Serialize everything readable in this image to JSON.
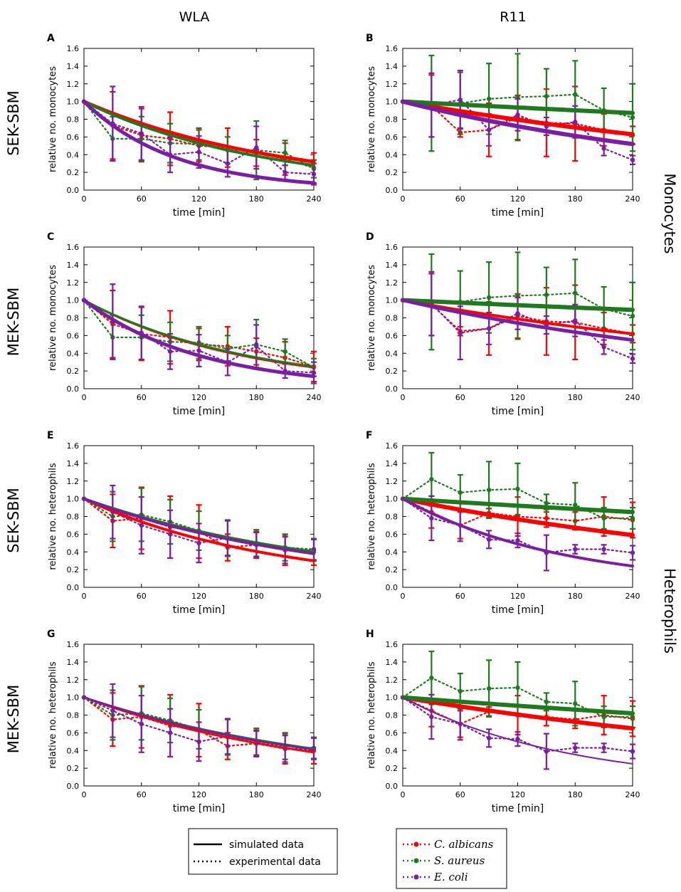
{
  "columns": [
    "WLA",
    "R11"
  ],
  "row_labels": [
    "SEK-SBM",
    "MEK-SBM",
    "SEK-SBM",
    "MEK-SBM"
  ],
  "group_labels": [
    "Monocytes",
    "Heterophils"
  ],
  "colors": {
    "C. albicans": "#ff0000",
    "S. aureus": "#1f7a1f",
    "E. coli": "#7b1fa2"
  },
  "legend_lines": {
    "simulated": "simulated data",
    "experimental": "experimental data"
  },
  "legend_species": [
    "C. albicans",
    "S. aureus",
    "E. coli"
  ],
  "chart_data": [
    {
      "panel": "A",
      "type": "line",
      "xlabel": "time [min]",
      "ylabel": "relative no. monocytes",
      "xlim": [
        0,
        240
      ],
      "ylim": [
        0,
        1.6
      ],
      "xticks": [
        0,
        60,
        120,
        180,
        240
      ],
      "yticks": [
        "0.0",
        "0.2",
        "0.4",
        "0.6",
        "0.8",
        "1.0",
        "1.2",
        "1.4",
        "1.6"
      ],
      "x": [
        0,
        30,
        60,
        90,
        120,
        150,
        180,
        210,
        240
      ],
      "series": [
        {
          "name": "C. albicans",
          "simulated": [
            1.0,
            0.32
          ],
          "lw": 5,
          "experimental": [
            1.0,
            0.73,
            0.62,
            0.58,
            0.5,
            0.48,
            0.42,
            0.35,
            0.25
          ],
          "err": [
            0,
            0.38,
            0.3,
            0.3,
            0.18,
            0.22,
            0.15,
            0.18,
            0.17
          ]
        },
        {
          "name": "S. aureus",
          "simulated": [
            1.0,
            0.28
          ],
          "lw": 4,
          "experimental": [
            1.0,
            0.58,
            0.58,
            0.53,
            0.52,
            0.45,
            0.45,
            0.42,
            0.24
          ],
          "err": [
            0,
            0.25,
            0.25,
            0.22,
            0.18,
            0.15,
            0.33,
            0.14,
            0.1
          ]
        },
        {
          "name": "E. coli",
          "simulated": [
            1.0,
            0.08
          ],
          "lw": 5,
          "experimental": [
            1.0,
            0.75,
            0.64,
            0.4,
            0.43,
            0.3,
            0.48,
            0.2,
            0.18
          ],
          "err": [
            0,
            0.42,
            0.3,
            0.2,
            0.18,
            0.15,
            0.24,
            0.08,
            0.12
          ]
        }
      ]
    },
    {
      "panel": "B",
      "type": "line",
      "xlabel": "time [min]",
      "ylabel": "relative no. monocytes",
      "xlim": [
        0,
        240
      ],
      "ylim": [
        0,
        1.6
      ],
      "xticks": [
        0,
        60,
        120,
        180,
        240
      ],
      "yticks": [
        "0.0",
        "0.2",
        "0.4",
        "0.6",
        "0.8",
        "1.0",
        "1.2",
        "1.4",
        "1.6"
      ],
      "x": [
        0,
        30,
        60,
        90,
        120,
        150,
        180,
        210,
        240
      ],
      "series": [
        {
          "name": "C. albicans",
          "simulated": [
            1.0,
            0.63
          ],
          "lw": 6,
          "experimental": [
            1.0,
            0.95,
            0.65,
            0.68,
            0.82,
            0.76,
            0.75,
            0.68,
            0.62
          ],
          "err": [
            0,
            0.35,
            0.05,
            0.3,
            0.25,
            0.38,
            0.42,
            0.18,
            0.1
          ]
        },
        {
          "name": "S. aureus",
          "simulated": [
            1.0,
            0.87
          ],
          "lw": 6,
          "experimental": [
            1.0,
            0.98,
            0.98,
            1.03,
            1.05,
            1.06,
            1.08,
            0.9,
            0.82
          ],
          "err": [
            0,
            0.54,
            0.35,
            0.4,
            0.49,
            0.31,
            0.38,
            0.25,
            0.38
          ]
        },
        {
          "name": "E. coli",
          "simulated": [
            1.0,
            0.52
          ],
          "lw": 6,
          "experimental": [
            1.0,
            0.96,
            1.02,
            0.68,
            0.85,
            0.72,
            0.77,
            0.47,
            0.34
          ],
          "err": [
            0,
            0.36,
            0.33,
            0.18,
            0.18,
            0.1,
            0.18,
            0.08,
            0.05
          ]
        }
      ]
    },
    {
      "panel": "C",
      "type": "line",
      "xlabel": "time [min]",
      "ylabel": "relative no. monocytes",
      "xlim": [
        0,
        240
      ],
      "ylim": [
        0,
        1.6
      ],
      "xticks": [
        0,
        60,
        120,
        180,
        240
      ],
      "yticks": [
        "0.0",
        "0.2",
        "0.4",
        "0.6",
        "0.8",
        "1.0",
        "1.2",
        "1.4",
        "1.6"
      ],
      "x": [
        0,
        30,
        60,
        90,
        120,
        150,
        180,
        210,
        240
      ],
      "series": [
        {
          "name": "C. albicans",
          "simulated": [
            1.0,
            0.24
          ],
          "lw": 3,
          "experimental": [
            1.0,
            0.73,
            0.62,
            0.58,
            0.5,
            0.48,
            0.42,
            0.35,
            0.25
          ],
          "err": [
            0,
            0.38,
            0.3,
            0.3,
            0.18,
            0.22,
            0.15,
            0.18,
            0.17
          ]
        },
        {
          "name": "S. aureus",
          "simulated": [
            1.0,
            0.25
          ],
          "lw": 3,
          "experimental": [
            1.0,
            0.58,
            0.58,
            0.53,
            0.52,
            0.45,
            0.5,
            0.42,
            0.24
          ],
          "err": [
            0,
            0.25,
            0.25,
            0.22,
            0.18,
            0.15,
            0.28,
            0.14,
            0.1
          ]
        },
        {
          "name": "E. coli",
          "simulated": [
            1.0,
            0.14
          ],
          "lw": 5,
          "experimental": [
            1.0,
            0.76,
            0.63,
            0.42,
            0.43,
            0.3,
            0.48,
            0.2,
            0.18
          ],
          "err": [
            0,
            0.42,
            0.3,
            0.2,
            0.18,
            0.15,
            0.24,
            0.08,
            0.12
          ]
        }
      ]
    },
    {
      "panel": "D",
      "type": "line",
      "xlabel": "time [min]",
      "ylabel": "relative no. monocytes",
      "xlim": [
        0,
        240
      ],
      "ylim": [
        0,
        1.6
      ],
      "xticks": [
        0,
        60,
        120,
        180,
        240
      ],
      "yticks": [
        "0.0",
        "0.2",
        "0.4",
        "0.6",
        "0.8",
        "1.0",
        "1.2",
        "1.4",
        "1.6"
      ],
      "x": [
        0,
        30,
        60,
        90,
        120,
        150,
        180,
        210,
        240
      ],
      "series": [
        {
          "name": "C. albicans",
          "simulated": [
            1.0,
            0.62
          ],
          "lw": 4,
          "experimental": [
            1.0,
            0.95,
            0.65,
            0.68,
            0.82,
            0.76,
            0.75,
            0.68,
            0.62
          ],
          "err": [
            0,
            0.35,
            0.05,
            0.3,
            0.25,
            0.38,
            0.42,
            0.18,
            0.1
          ]
        },
        {
          "name": "S. aureus",
          "simulated": [
            1.0,
            0.89
          ],
          "lw": 6,
          "experimental": [
            1.0,
            0.98,
            0.98,
            1.03,
            1.05,
            1.06,
            1.08,
            0.9,
            0.82
          ],
          "err": [
            0,
            0.54,
            0.35,
            0.4,
            0.49,
            0.31,
            0.38,
            0.25,
            0.38
          ]
        },
        {
          "name": "E. coli",
          "simulated": [
            1.0,
            0.55
          ],
          "lw": 5,
          "experimental": [
            1.0,
            0.96,
            0.63,
            0.68,
            0.85,
            0.72,
            0.77,
            0.47,
            0.34
          ],
          "err": [
            0,
            0.36,
            0.3,
            0.18,
            0.18,
            0.1,
            0.18,
            0.08,
            0.05
          ]
        }
      ]
    },
    {
      "panel": "E",
      "type": "line",
      "xlabel": "time [min]",
      "ylabel": "relative no. heterophils",
      "xlim": [
        0,
        240
      ],
      "ylim": [
        0,
        1.6
      ],
      "xticks": [
        0,
        60,
        120,
        180,
        240
      ],
      "yticks": [
        "0.0",
        "0.2",
        "0.4",
        "0.6",
        "0.8",
        "1.0",
        "1.2",
        "1.4",
        "1.6"
      ],
      "x": [
        0,
        30,
        60,
        90,
        120,
        150,
        180,
        210,
        240
      ],
      "series": [
        {
          "name": "C. albicans",
          "simulated": [
            1.0,
            0.3
          ],
          "lw": 4,
          "experimental": [
            1.0,
            0.75,
            0.78,
            0.68,
            0.63,
            0.45,
            0.48,
            0.42,
            0.4
          ],
          "err": [
            0,
            0.3,
            0.35,
            0.35,
            0.3,
            0.15,
            0.15,
            0.17,
            0.15
          ]
        },
        {
          "name": "S. aureus",
          "simulated": [
            1.0,
            0.4
          ],
          "lw": 4,
          "experimental": [
            1.0,
            0.8,
            0.82,
            0.74,
            0.64,
            0.55,
            0.5,
            0.45,
            0.43
          ],
          "err": [
            0,
            0.28,
            0.3,
            0.25,
            0.22,
            0.2,
            0.15,
            0.15,
            0.12
          ]
        },
        {
          "name": "E. coli",
          "simulated": [
            1.0,
            0.38
          ],
          "lw": 4,
          "experimental": [
            1.0,
            0.85,
            0.7,
            0.6,
            0.5,
            0.56,
            0.48,
            0.42,
            0.42
          ],
          "err": [
            0,
            0.3,
            0.32,
            0.27,
            0.22,
            0.2,
            0.14,
            0.15,
            0.12
          ]
        }
      ]
    },
    {
      "panel": "F",
      "type": "line",
      "xlabel": "time [min]",
      "ylabel": "relative no. heterophils",
      "xlim": [
        0,
        240
      ],
      "ylim": [
        0,
        1.6
      ],
      "xticks": [
        0,
        60,
        120,
        180,
        240
      ],
      "yticks": [
        "0.0",
        "0.2",
        "0.4",
        "0.6",
        "0.8",
        "1.0",
        "1.2",
        "1.4",
        "1.6"
      ],
      "x": [
        0,
        30,
        60,
        90,
        120,
        150,
        180,
        210,
        240
      ],
      "series": [
        {
          "name": "C. albicans",
          "simulated": [
            1.0,
            0.59
          ],
          "lw": 6,
          "experimental": [
            1.0,
            0.85,
            0.7,
            0.84,
            0.8,
            0.78,
            0.75,
            0.8,
            0.76
          ],
          "err": [
            0,
            0.18,
            0.15,
            0.05,
            0.22,
            0.1,
            0.1,
            0.22,
            0.2
          ]
        },
        {
          "name": "S. aureus",
          "simulated": [
            1.0,
            0.85
          ],
          "lw": 6,
          "experimental": [
            1.0,
            1.22,
            1.07,
            1.1,
            1.11,
            0.95,
            0.93,
            0.78,
            0.78
          ],
          "err": [
            0,
            0.3,
            0.2,
            0.32,
            0.29,
            0.1,
            0.25,
            0.12,
            0.12
          ]
        },
        {
          "name": "E. coli",
          "simulated": [
            1.0,
            0.24
          ],
          "lw": 4,
          "experimental": [
            1.0,
            0.78,
            0.7,
            0.54,
            0.53,
            0.39,
            0.43,
            0.43,
            0.39
          ],
          "err": [
            0,
            0.25,
            0.18,
            0.1,
            0.08,
            0.2,
            0.05,
            0.05,
            0.08
          ]
        }
      ]
    },
    {
      "panel": "G",
      "type": "line",
      "xlabel": "time [min]",
      "ylabel": "relative no. heterophils",
      "xlim": [
        0,
        240
      ],
      "ylim": [
        0,
        1.6
      ],
      "xticks": [
        0,
        60,
        120,
        180,
        240
      ],
      "yticks": [
        "0.0",
        "0.2",
        "0.4",
        "0.6",
        "0.8",
        "1.0",
        "1.2",
        "1.4",
        "1.6"
      ],
      "x": [
        0,
        30,
        60,
        90,
        120,
        150,
        180,
        210,
        240
      ],
      "series": [
        {
          "name": "C. albicans",
          "simulated": [
            1.0,
            0.38
          ],
          "lw": 3,
          "experimental": [
            1.0,
            0.75,
            0.78,
            0.68,
            0.63,
            0.45,
            0.48,
            0.42,
            0.4
          ],
          "err": [
            0,
            0.3,
            0.35,
            0.35,
            0.3,
            0.15,
            0.15,
            0.17,
            0.15
          ]
        },
        {
          "name": "S. aureus",
          "simulated": [
            1.0,
            0.42
          ],
          "lw": 3,
          "experimental": [
            1.0,
            0.8,
            0.82,
            0.74,
            0.64,
            0.55,
            0.5,
            0.45,
            0.43
          ],
          "err": [
            0,
            0.28,
            0.3,
            0.25,
            0.22,
            0.2,
            0.15,
            0.15,
            0.12
          ]
        },
        {
          "name": "E. coli",
          "simulated": [
            1.0,
            0.41
          ],
          "lw": 3,
          "experimental": [
            1.0,
            0.85,
            0.7,
            0.6,
            0.5,
            0.56,
            0.48,
            0.42,
            0.42
          ],
          "err": [
            0,
            0.3,
            0.32,
            0.27,
            0.22,
            0.2,
            0.14,
            0.15,
            0.12
          ]
        }
      ]
    },
    {
      "panel": "H",
      "type": "line",
      "xlabel": "time [min]",
      "ylabel": "relative no. heterophils",
      "xlim": [
        0,
        240
      ],
      "ylim": [
        0,
        1.6
      ],
      "xticks": [
        0,
        60,
        120,
        180,
        240
      ],
      "yticks": [
        "0.0",
        "0.2",
        "0.4",
        "0.6",
        "0.8",
        "1.0",
        "1.2",
        "1.4",
        "1.6"
      ],
      "x": [
        0,
        30,
        60,
        90,
        120,
        150,
        180,
        210,
        240
      ],
      "series": [
        {
          "name": "C. albicans",
          "simulated": [
            1.0,
            0.65
          ],
          "lw": 6,
          "experimental": [
            1.0,
            0.85,
            0.7,
            0.84,
            0.8,
            0.78,
            0.75,
            0.8,
            0.76
          ],
          "err": [
            0,
            0.18,
            0.15,
            0.05,
            0.22,
            0.1,
            0.1,
            0.22,
            0.2
          ]
        },
        {
          "name": "S. aureus",
          "simulated": [
            1.0,
            0.82
          ],
          "lw": 6,
          "experimental": [
            1.0,
            1.22,
            1.07,
            1.1,
            1.11,
            0.95,
            0.93,
            0.78,
            0.78
          ],
          "err": [
            0,
            0.3,
            0.2,
            0.32,
            0.29,
            0.1,
            0.25,
            0.12,
            0.12
          ]
        },
        {
          "name": "E. coli",
          "simulated": [
            1.0,
            0.25
          ],
          "lw": 2,
          "experimental": [
            1.0,
            0.78,
            0.7,
            0.54,
            0.53,
            0.39,
            0.43,
            0.43,
            0.39
          ],
          "err": [
            0,
            0.25,
            0.18,
            0.1,
            0.08,
            0.2,
            0.05,
            0.05,
            0.08
          ]
        }
      ]
    }
  ]
}
